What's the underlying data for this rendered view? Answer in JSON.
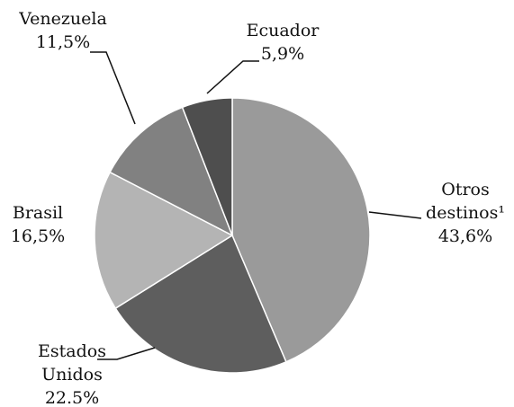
{
  "chart_data": {
    "type": "pie",
    "categories": [
      "Otros destinos¹",
      "Estados Unidos",
      "Brasil",
      "Venezuela",
      "Ecuador"
    ],
    "values": [
      43.6,
      22.5,
      16.5,
      11.5,
      5.9
    ],
    "value_labels": [
      "43,6%",
      "22.5%",
      "16,5%",
      "11,5%",
      "5,9%"
    ],
    "colors": [
      "#9a9a9a",
      "#5e5e5e",
      "#b4b4b4",
      "#818181",
      "#4e4e4e"
    ]
  }
}
